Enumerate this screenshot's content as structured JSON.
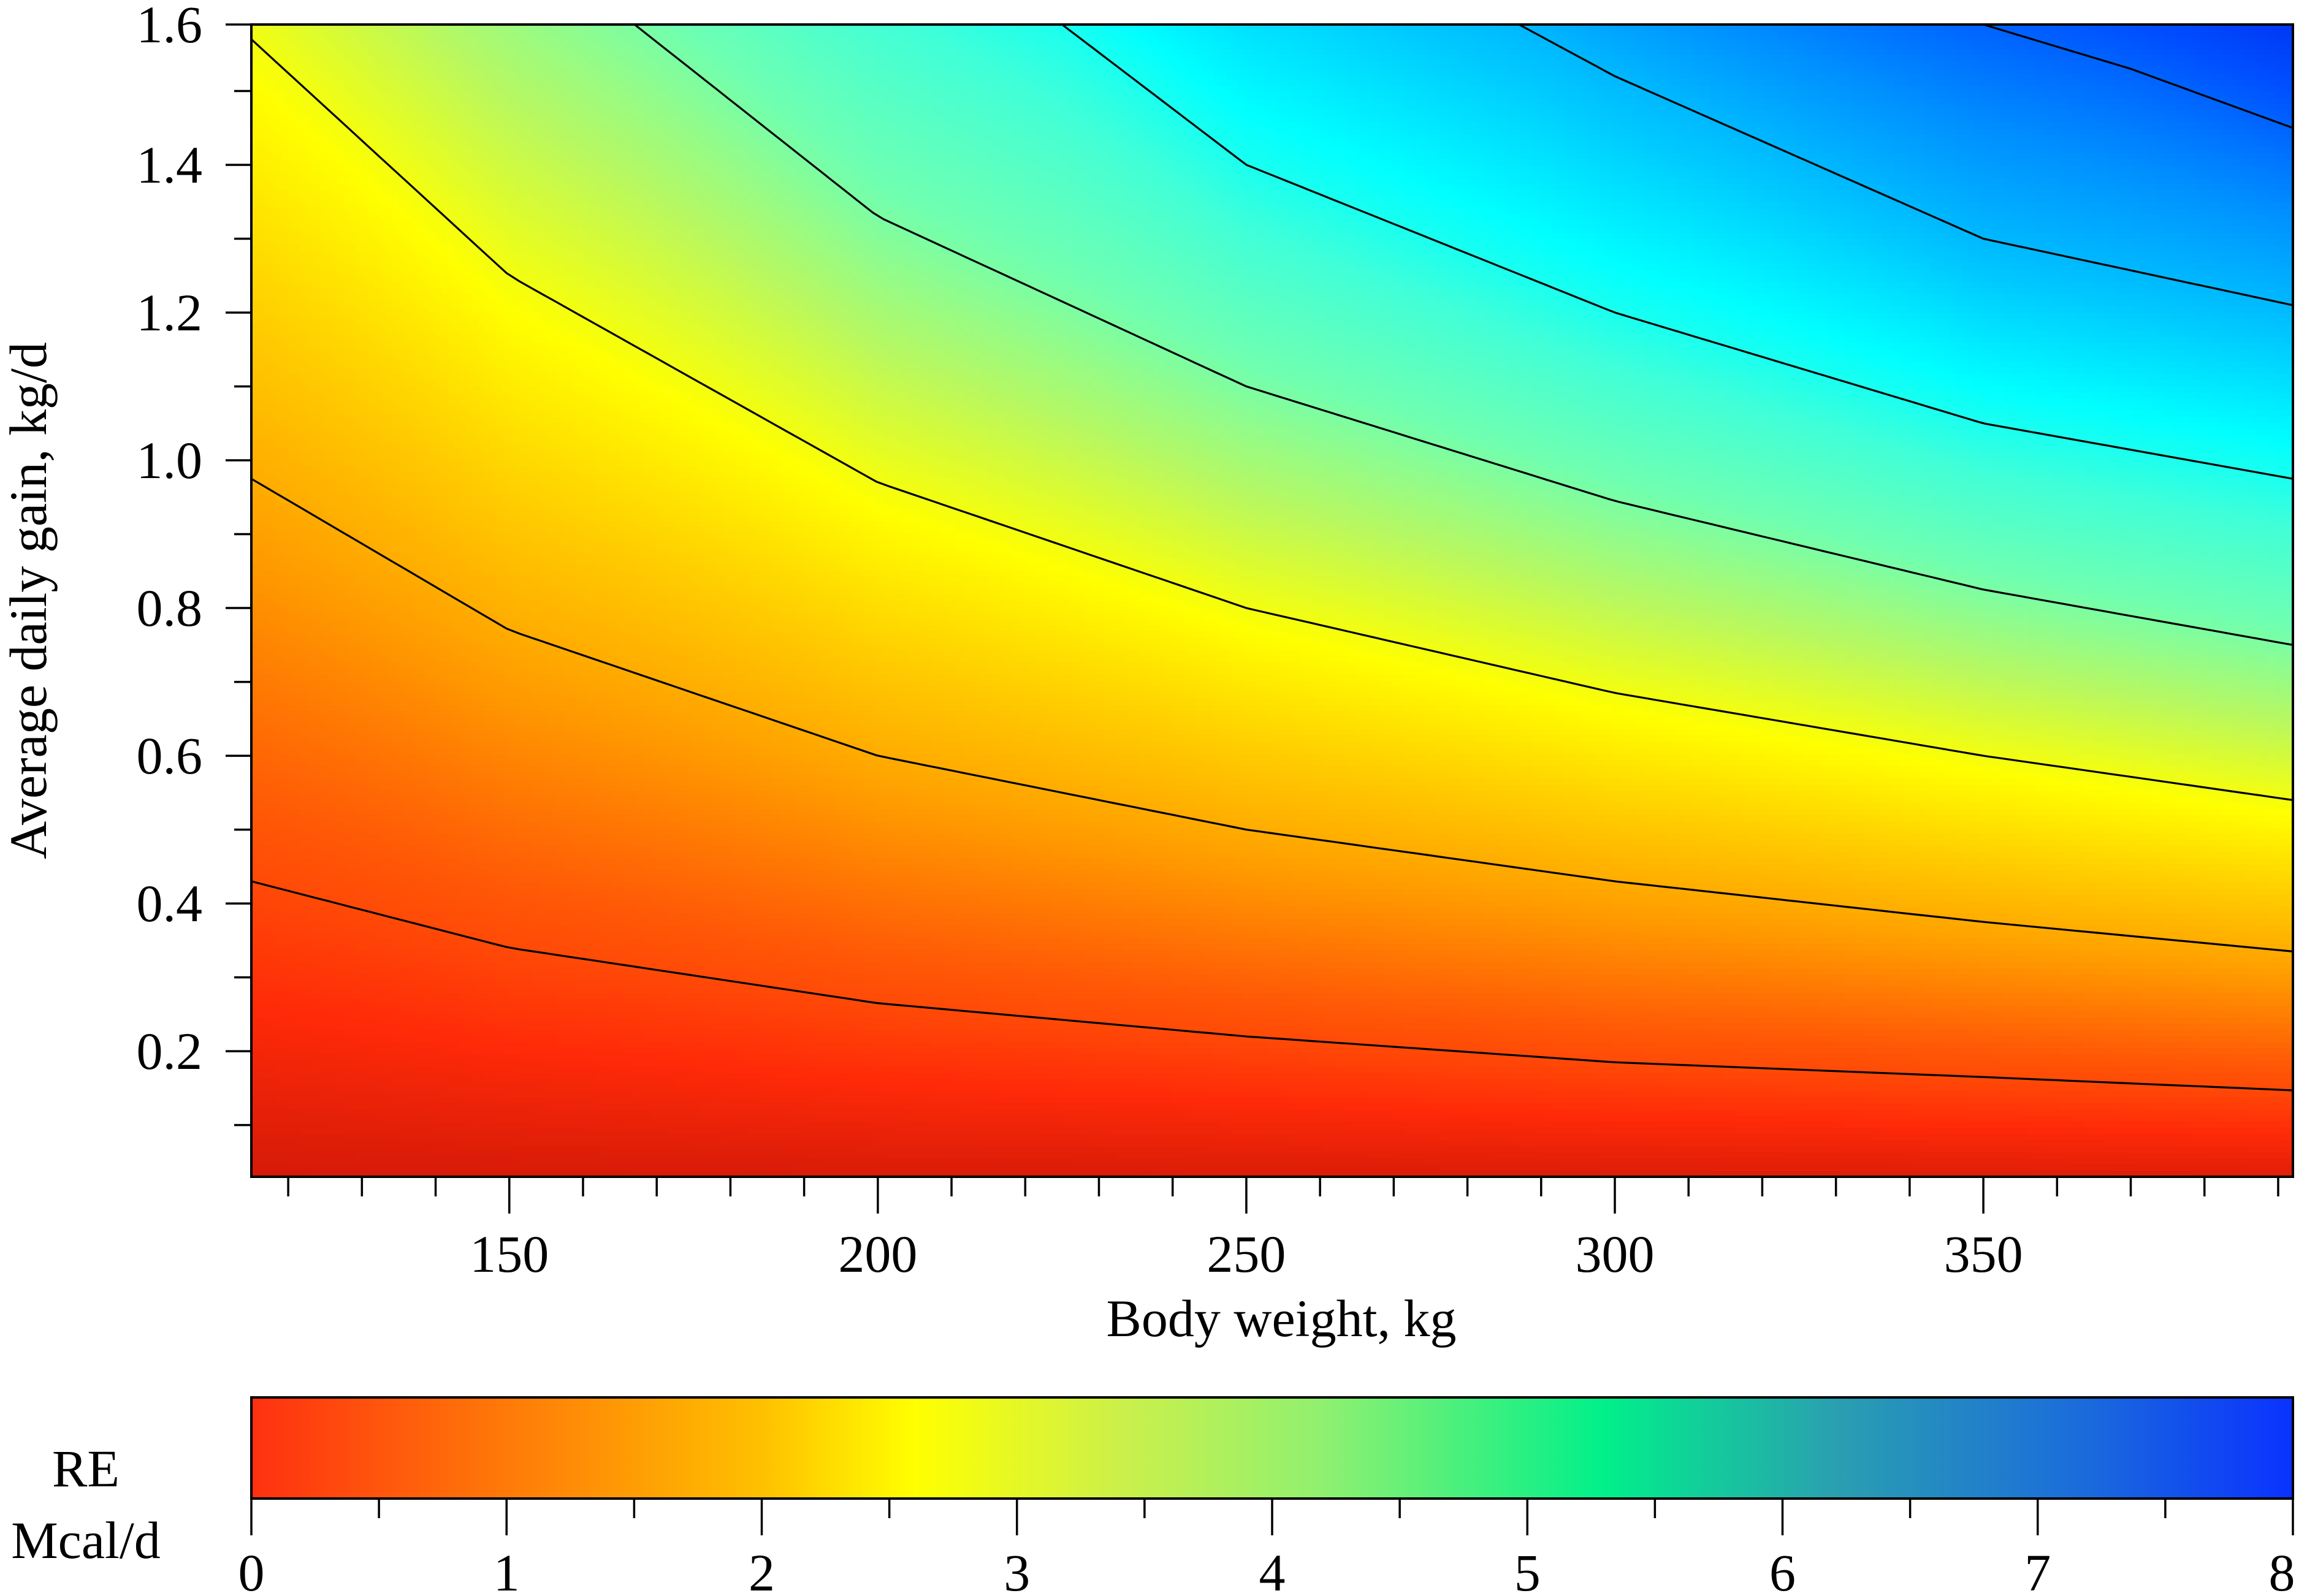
{
  "chart_data": {
    "type": "heatmap",
    "title": "",
    "xlabel": "Body weight, kg",
    "ylabel": "Average daily gain, kg/d",
    "xlim": [
      115,
      392
    ],
    "ylim": [
      0.03,
      1.59
    ],
    "x_ticks": [
      150,
      200,
      250,
      300,
      350
    ],
    "x_tick_labels": [
      "150",
      "200",
      "250",
      "300",
      "350"
    ],
    "x_minor_step": 10,
    "y_ticks": [
      0.2,
      0.4,
      0.6,
      0.8,
      1.0,
      1.2,
      1.4,
      1.6
    ],
    "y_tick_labels": [
      "0.2",
      "0.4",
      "0.6",
      "0.8",
      "1.0",
      "1.2",
      "1.4",
      "1.6"
    ],
    "y_minor_step": 0.1,
    "grid": false,
    "surface_model": {
      "description": "RE rises with both body weight and daily gain",
      "exponent": 0.75
    },
    "contours": [
      {
        "level": 1.0,
        "points": [
          [
            115,
            0.43
          ],
          [
            150,
            0.34
          ],
          [
            200,
            0.265
          ],
          [
            250,
            0.22
          ],
          [
            300,
            0.185
          ],
          [
            350,
            0.165
          ],
          [
            392,
            0.147
          ]
        ]
      },
      {
        "level": 2.0,
        "points": [
          [
            115,
            0.975
          ],
          [
            150,
            0.77
          ],
          [
            200,
            0.6
          ],
          [
            250,
            0.5
          ],
          [
            300,
            0.43
          ],
          [
            350,
            0.375
          ],
          [
            392,
            0.335
          ]
        ]
      },
      {
        "level": 3.0,
        "points": [
          [
            115,
            1.57
          ],
          [
            150,
            1.25
          ],
          [
            200,
            0.97
          ],
          [
            250,
            0.8
          ],
          [
            300,
            0.685
          ],
          [
            350,
            0.6
          ],
          [
            392,
            0.54
          ]
        ]
      },
      {
        "level": 4.0,
        "points": [
          [
            167,
            1.59
          ],
          [
            200,
            1.33
          ],
          [
            250,
            1.1
          ],
          [
            300,
            0.945
          ],
          [
            350,
            0.825
          ],
          [
            392,
            0.75
          ]
        ]
      },
      {
        "level": 5.0,
        "points": [
          [
            225,
            1.59
          ],
          [
            250,
            1.4
          ],
          [
            300,
            1.2
          ],
          [
            350,
            1.05
          ],
          [
            392,
            0.975
          ]
        ]
      },
      {
        "level": 6.0,
        "points": [
          [
            287,
            1.59
          ],
          [
            300,
            1.52
          ],
          [
            350,
            1.3
          ],
          [
            392,
            1.21
          ]
        ]
      },
      {
        "level": 7.0,
        "points": [
          [
            350,
            1.59
          ],
          [
            370,
            1.53
          ],
          [
            392,
            1.45
          ]
        ]
      }
    ],
    "colorbar": {
      "title_line1": "RE",
      "title_line2": "Mcal/d",
      "range": [
        0,
        8
      ],
      "ticks": [
        0,
        1,
        2,
        3,
        4,
        5,
        6,
        7,
        8
      ],
      "tick_labels": [
        "0",
        "1",
        "2",
        "3",
        "4",
        "5",
        "6",
        "7",
        "8"
      ],
      "minor_step": 0.5,
      "gradient_stops": [
        {
          "value": 0.0,
          "color": "#ff3010"
        },
        {
          "value": 1.0,
          "color": "#ff7a08"
        },
        {
          "value": 2.0,
          "color": "#ffc000"
        },
        {
          "value": 2.6,
          "color": "#ffff00"
        },
        {
          "value": 3.4,
          "color": "#ccf04a"
        },
        {
          "value": 4.2,
          "color": "#90f070"
        },
        {
          "value": 5.3,
          "color": "#00f08a"
        },
        {
          "value": 6.2,
          "color": "#2aa0b0"
        },
        {
          "value": 7.2,
          "color": "#1a6adc"
        },
        {
          "value": 8.0,
          "color": "#0a32ff"
        }
      ]
    },
    "surface_colors": [
      {
        "value": -0.6,
        "color": "#8a0c00"
      },
      {
        "value": 0.0,
        "color": "#d01808"
      },
      {
        "value": 0.6,
        "color": "#ff2a08"
      },
      {
        "value": 1.2,
        "color": "#ff5a06"
      },
      {
        "value": 1.8,
        "color": "#ff9a00"
      },
      {
        "value": 2.4,
        "color": "#ffd000"
      },
      {
        "value": 2.9,
        "color": "#ffff00"
      },
      {
        "value": 3.5,
        "color": "#b8f860"
      },
      {
        "value": 4.1,
        "color": "#70ffb0"
      },
      {
        "value": 4.7,
        "color": "#40ffd8"
      },
      {
        "value": 5.2,
        "color": "#00ffff"
      },
      {
        "value": 5.8,
        "color": "#00c8ff"
      },
      {
        "value": 6.5,
        "color": "#0090ff"
      },
      {
        "value": 7.2,
        "color": "#0050ff"
      },
      {
        "value": 7.8,
        "color": "#0028f0"
      },
      {
        "value": 8.4,
        "color": "#041c90"
      }
    ]
  }
}
